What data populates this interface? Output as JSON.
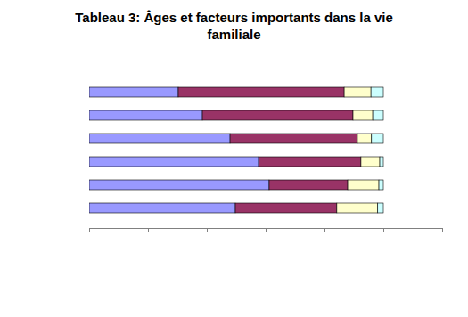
{
  "chart_data": {
    "type": "bar",
    "title": "Tableau 3: Âges et facteurs importants dans la vie familiale",
    "orientation": "horizontal",
    "stacked": true,
    "tick_labels": false,
    "categories": [
      null,
      null,
      null,
      null,
      null,
      null
    ],
    "series": [
      {
        "color": "#9999ff",
        "values": [
          30.3,
          38.5,
          47.9,
          57.6,
          61.2,
          49.7
        ]
      },
      {
        "color": "#993366",
        "values": [
          56.4,
          51.2,
          43.3,
          34.8,
          26.7,
          34.5
        ]
      },
      {
        "color": "#ffffcc",
        "values": [
          9.1,
          6.7,
          4.8,
          6.4,
          10.6,
          13.9
        ]
      },
      {
        "color": "#ccffff",
        "values": [
          4.2,
          3.6,
          4.0,
          1.2,
          1.5,
          1.9
        ]
      }
    ],
    "xlim": [
      0,
      120
    ],
    "xticks": [
      0,
      20,
      40,
      60,
      80,
      100,
      120
    ]
  }
}
